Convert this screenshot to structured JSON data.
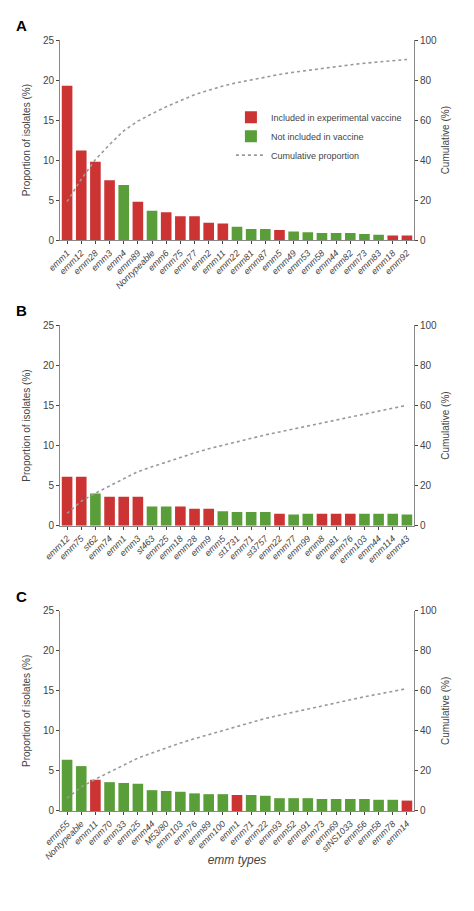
{
  "chart_data": [
    {
      "type": "bar",
      "title": "A",
      "categories": [
        "emm1",
        "emm12",
        "emm28",
        "emm3",
        "emm4",
        "emm89",
        "Nontypeable",
        "emm6",
        "emm75",
        "emm77",
        "emm2",
        "emm11",
        "emm22",
        "emm81",
        "emm87",
        "emm5",
        "emm49",
        "emm53",
        "emm58",
        "emm44",
        "emm82",
        "emm73",
        "emm83",
        "emm18",
        "emm92"
      ],
      "ylabel": "Proportion of isolates (%)",
      "y2label": "Cumulative (%)",
      "ylim": [
        0,
        25
      ],
      "yticks": [
        0,
        5,
        10,
        15,
        20,
        25
      ],
      "y2lim": [
        0,
        100
      ],
      "y2ticks": [
        0,
        20,
        40,
        60,
        80,
        100
      ],
      "grid": false,
      "legend": "right",
      "series": [
        {
          "name": "Included in experimental vaccine",
          "color": "#cc3333",
          "values": [
            19.3,
            11.2,
            9.8,
            7.5,
            null,
            4.8,
            null,
            3.5,
            3.0,
            3.0,
            2.2,
            2.1,
            null,
            null,
            null,
            1.3,
            null,
            null,
            null,
            null,
            null,
            null,
            null,
            0.6,
            0.6
          ]
        },
        {
          "name": "Not included in vaccine",
          "color": "#5a9e3a",
          "values": [
            null,
            null,
            null,
            null,
            6.9,
            null,
            3.7,
            null,
            null,
            null,
            null,
            null,
            1.7,
            1.4,
            1.4,
            null,
            1.1,
            1.0,
            0.9,
            0.9,
            0.9,
            0.8,
            0.7,
            null,
            null
          ]
        },
        {
          "name": "Cumulative proportion",
          "type": "line",
          "line_style": "dotted",
          "color": "#999999",
          "axis": "y2",
          "values": [
            19.3,
            30.5,
            40.3,
            47.8,
            54.7,
            59.5,
            63.2,
            66.7,
            69.7,
            72.7,
            74.9,
            77.0,
            78.7,
            80.1,
            81.5,
            82.8,
            83.9,
            84.9,
            85.8,
            86.7,
            87.6,
            88.4,
            89.1,
            89.7,
            90.3
          ]
        }
      ]
    },
    {
      "type": "bar",
      "title": "B",
      "categories": [
        "emm12",
        "emm75",
        "st62",
        "emm74",
        "emm1",
        "emm3",
        "st463",
        "emm25",
        "emm18",
        "emm28",
        "emm9",
        "emm5",
        "st1731",
        "emm71",
        "st3757",
        "emm22",
        "emm77",
        "emm99",
        "emm8",
        "emm81",
        "emm76",
        "emm103",
        "emm44",
        "emm114",
        "emm43"
      ],
      "ylabel": "Proportion of isolates (%)",
      "y2label": "Cumulative (%)",
      "ylim": [
        0,
        25
      ],
      "yticks": [
        0,
        5,
        10,
        15,
        20,
        25
      ],
      "y2lim": [
        0,
        100
      ],
      "y2ticks": [
        0,
        20,
        40,
        60,
        80,
        100
      ],
      "grid": false,
      "series": [
        {
          "color": "#cc3333",
          "values": [
            6.1,
            6.1,
            null,
            3.6,
            3.6,
            3.6,
            null,
            null,
            2.4,
            2.1,
            2.1,
            null,
            null,
            null,
            null,
            1.5,
            null,
            null,
            1.5,
            1.5,
            1.5,
            null,
            null,
            null,
            null
          ]
        },
        {
          "color": "#5a9e3a",
          "values": [
            null,
            null,
            4.0,
            null,
            null,
            null,
            2.4,
            2.4,
            null,
            null,
            null,
            1.8,
            1.7,
            1.7,
            1.7,
            null,
            1.4,
            1.5,
            null,
            null,
            null,
            1.5,
            1.5,
            1.5,
            1.4
          ]
        },
        {
          "type": "line",
          "line_style": "dotted",
          "color": "#999999",
          "axis": "y2",
          "values": [
            6.1,
            12.2,
            16.2,
            19.8,
            23.4,
            27.0,
            29.4,
            31.8,
            34.2,
            36.3,
            38.4,
            40.2,
            41.9,
            43.6,
            45.3,
            46.8,
            48.2,
            49.7,
            51.2,
            52.7,
            54.2,
            55.7,
            57.2,
            58.7,
            60.1
          ]
        }
      ]
    },
    {
      "type": "bar",
      "title": "C",
      "categories": [
        "emm55",
        "Nontypeable",
        "emm11",
        "emm70",
        "emm33",
        "emm25",
        "emm44",
        "M53/80",
        "emm103",
        "emm76",
        "emm89",
        "emm100",
        "emm1",
        "emm71",
        "emm22",
        "emm93",
        "emm52",
        "emm91",
        "emm73",
        "emm69",
        "stNS1033",
        "emm56",
        "emm58",
        "emm78",
        "emm14"
      ],
      "xlabel": "emm types",
      "ylabel": "Proportion of isolates (%)",
      "y2label": "Cumulative (%)",
      "ylim": [
        0,
        25
      ],
      "yticks": [
        0,
        5,
        10,
        15,
        20,
        25
      ],
      "y2lim": [
        0,
        100
      ],
      "y2ticks": [
        0,
        20,
        40,
        60,
        80,
        100
      ],
      "grid": false,
      "series": [
        {
          "color": "#cc3333",
          "values": [
            null,
            null,
            3.9,
            null,
            null,
            null,
            null,
            null,
            null,
            null,
            null,
            null,
            2.0,
            null,
            null,
            null,
            null,
            null,
            null,
            null,
            null,
            null,
            null,
            null,
            1.3
          ]
        },
        {
          "color": "#5a9e3a",
          "values": [
            6.4,
            5.6,
            null,
            3.6,
            3.5,
            3.4,
            2.6,
            2.5,
            2.4,
            2.2,
            2.1,
            2.1,
            null,
            2.0,
            1.9,
            1.6,
            1.6,
            1.6,
            1.5,
            1.5,
            1.5,
            1.5,
            1.4,
            1.4,
            null
          ]
        },
        {
          "type": "line",
          "line_style": "dotted",
          "color": "#999999",
          "axis": "y2",
          "values": [
            6.4,
            12.0,
            15.9,
            19.5,
            23.0,
            26.4,
            29.0,
            31.5,
            33.9,
            36.1,
            38.2,
            40.3,
            42.3,
            44.3,
            46.2,
            47.8,
            49.4,
            51.0,
            52.5,
            54.0,
            55.5,
            57.0,
            58.4,
            59.8,
            61.1
          ]
        }
      ]
    }
  ]
}
